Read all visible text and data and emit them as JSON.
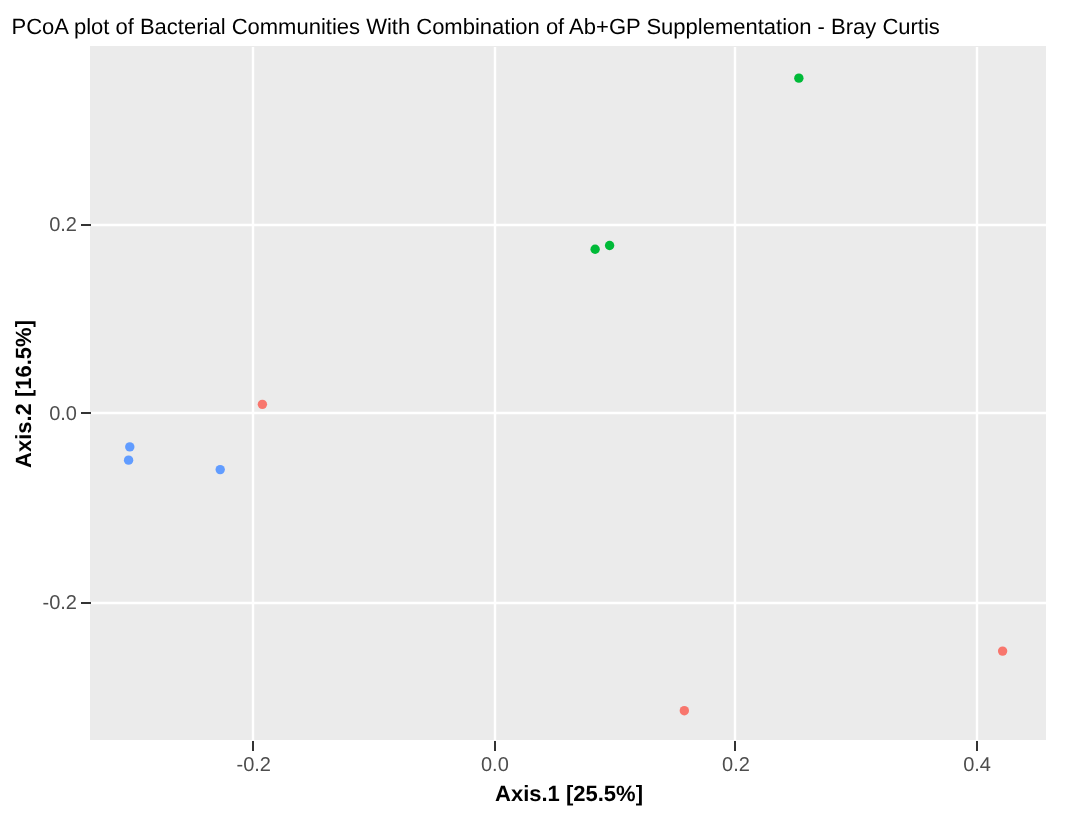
{
  "chart_data": {
    "type": "scatter",
    "title": "PCoA plot of Bacterial Communities With Combination of Ab+GP Supplementation - Bray Curtis",
    "xlabel": "Axis.1   [25.5%]",
    "ylabel": "Axis.2   [16.5%]",
    "xlim": [
      -0.335,
      0.458
    ],
    "ylim": [
      -0.346,
      0.388
    ],
    "xticks": [
      -0.2,
      {
        "value": 0,
        "label": "0.0"
      },
      0.2,
      0.4
    ],
    "yticks": [
      -0.2,
      {
        "value": 0,
        "label": "0.0"
      },
      0.2
    ],
    "grid": true,
    "marker": "circle",
    "series": [
      {
        "color": "#f8766d",
        "x": [
          -0.192,
          0.158,
          0.422
        ],
        "values": [
          0.009,
          -0.315,
          -0.252
        ]
      },
      {
        "color": "#00ba38",
        "x": [
          0.253,
          0.084,
          0.096
        ],
        "values": [
          0.354,
          0.173,
          0.177
        ]
      },
      {
        "color": "#619cff",
        "x": [
          -0.302,
          -0.303,
          -0.227
        ],
        "values": [
          -0.036,
          -0.05,
          -0.06
        ]
      }
    ]
  }
}
